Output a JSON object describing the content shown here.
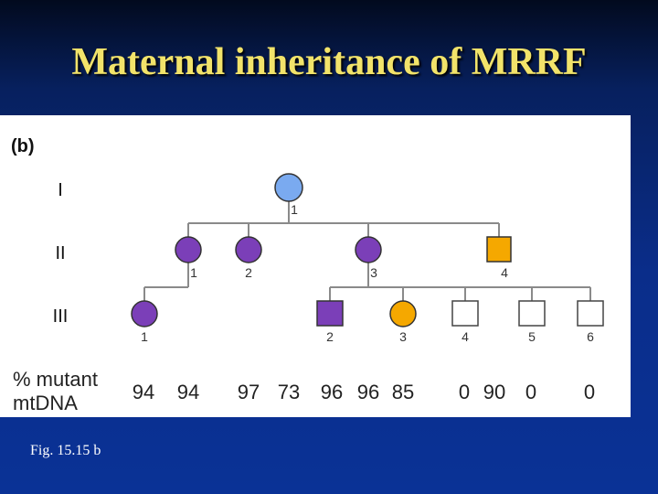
{
  "slide": {
    "title": "Maternal inheritance of MRRF",
    "caption": "Fig. 15.15 b"
  },
  "figure": {
    "panel_label": "(b)",
    "generation_labels": [
      "I",
      "II",
      "III"
    ],
    "mutant_label_line1": "% mutant",
    "mutant_label_line2": "mtDNA",
    "colors": {
      "light_blue": "#7aaaf0",
      "purple": "#7b3fb8",
      "orange": "#f5a800",
      "white": "#ffffff",
      "line": "#8a8a8a"
    },
    "individuals": [
      {
        "id": "I-1",
        "generation": "I",
        "number": "1",
        "sex": "female",
        "color": "light_blue",
        "mutant_mtDNA": null
      },
      {
        "id": "II-1",
        "generation": "II",
        "number": "1",
        "sex": "female",
        "color": "purple",
        "mutant_mtDNA": 94
      },
      {
        "id": "II-2",
        "generation": "II",
        "number": "2",
        "sex": "female",
        "color": "purple",
        "mutant_mtDNA": 97
      },
      {
        "id": "II-3",
        "generation": "II",
        "number": "3",
        "sex": "female",
        "color": "purple",
        "mutant_mtDNA": 96
      },
      {
        "id": "II-4",
        "generation": "II",
        "number": "4",
        "sex": "male",
        "color": "orange",
        "mutant_mtDNA": 90
      },
      {
        "id": "III-1",
        "generation": "III",
        "number": "1",
        "sex": "female",
        "color": "purple",
        "mutant_mtDNA": 94
      },
      {
        "id": "III-2",
        "generation": "III",
        "number": "2",
        "sex": "male",
        "color": "purple",
        "mutant_mtDNA": 96
      },
      {
        "id": "III-3",
        "generation": "III",
        "number": "3",
        "sex": "female",
        "color": "orange",
        "mutant_mtDNA": 85
      },
      {
        "id": "III-4",
        "generation": "III",
        "number": "4",
        "sex": "male",
        "color": "white",
        "mutant_mtDNA": 0
      },
      {
        "id": "III-5",
        "generation": "III",
        "number": "5",
        "sex": "male",
        "color": "white",
        "mutant_mtDNA": 0
      },
      {
        "id": "III-6",
        "generation": "III",
        "number": "6",
        "sex": "male",
        "color": "white",
        "mutant_mtDNA": 0
      }
    ],
    "mutant_values_row": [
      "94",
      "94",
      "97",
      "73",
      "96",
      "96",
      "85",
      "0",
      "90",
      "0",
      "0"
    ]
  }
}
